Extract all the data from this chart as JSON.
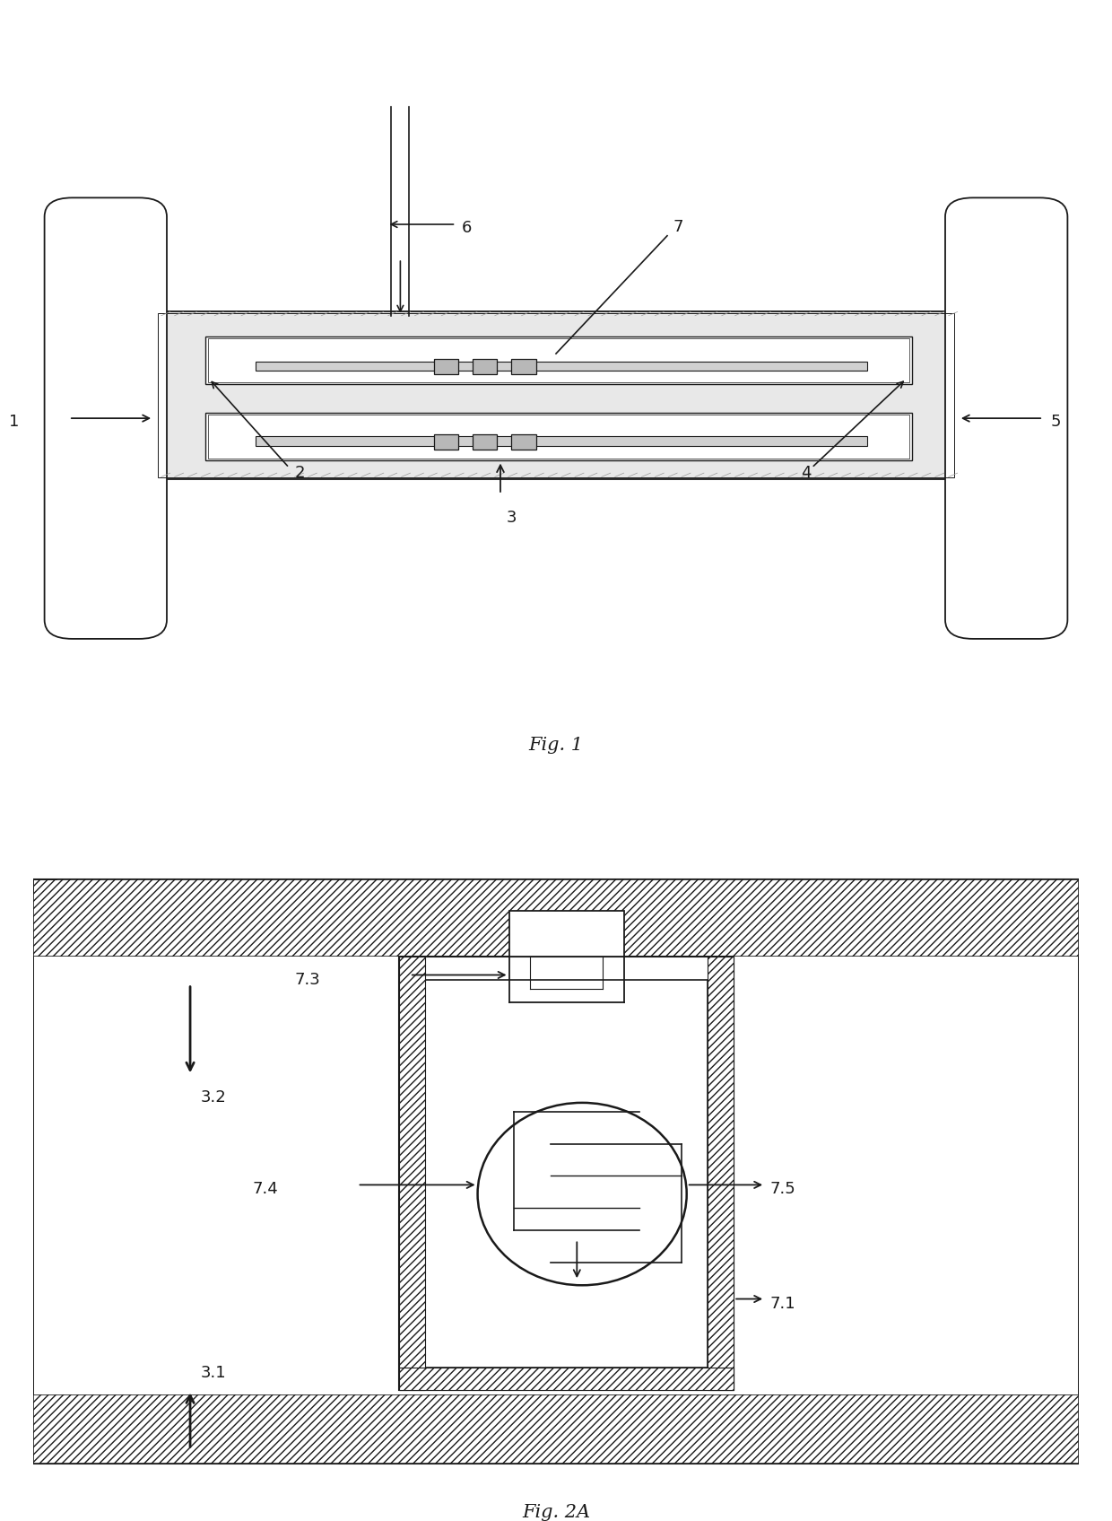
{
  "bg_color": "#ffffff",
  "lc": "#1a1a1a",
  "fig1_caption": "Fig. 1",
  "fig2a_caption": "Fig. 2A",
  "lfs": 13,
  "cfs": 15
}
